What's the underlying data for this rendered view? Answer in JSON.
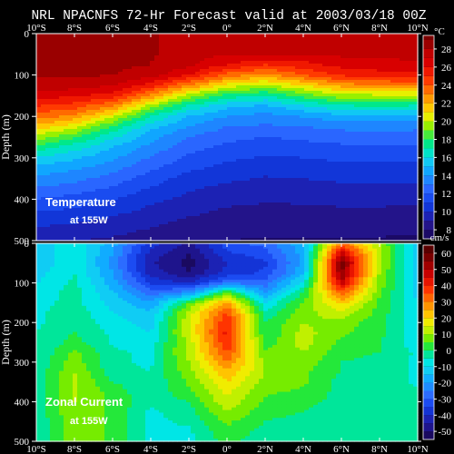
{
  "title": "NRL NPACNFS 72-Hr Forecast valid at 2003/03/18 00Z",
  "chart_data": [
    {
      "type": "heatmap",
      "title": "Temperature",
      "subtitle": "at 155W",
      "unit": "°C",
      "xlabel": "",
      "ylabel": "Depth (m)",
      "x_ticks": [
        "10°S",
        "8°S",
        "6°S",
        "4°S",
        "2°S",
        "0°",
        "2°N",
        "4°N",
        "6°N",
        "8°N",
        "10°N"
      ],
      "y_ticks": [
        "0",
        "100",
        "200",
        "300",
        "400",
        "500"
      ],
      "xlim": [
        -10,
        10
      ],
      "ylim": [
        0,
        500
      ],
      "colorbar": {
        "ticks": [
          "8",
          "10",
          "12",
          "14",
          "16",
          "18",
          "20",
          "22",
          "24",
          "26",
          "28"
        ],
        "min": 7,
        "max": 29.5,
        "step": 1,
        "colors": [
          "#1b0a66",
          "#23148a",
          "#1c22b4",
          "#1236d8",
          "#1a4cf0",
          "#2a66ff",
          "#1e86ff",
          "#10a6ff",
          "#10c8f4",
          "#00e2c8",
          "#00e88a",
          "#46ec3a",
          "#98f000",
          "#e6f000",
          "#ffc800",
          "#ff9a00",
          "#ff6a00",
          "#ff3a00",
          "#f01800",
          "#d80000",
          "#c00000",
          "#9a0000",
          "#7a0000"
        ]
      },
      "depth": [
        0,
        25,
        50,
        75,
        100,
        125,
        150,
        175,
        200,
        225,
        250,
        275,
        300,
        325,
        350,
        375,
        400,
        425,
        450,
        475,
        500
      ],
      "lat": [
        -10,
        -8,
        -6,
        -4,
        -2,
        0,
        2,
        4,
        6,
        8,
        10
      ],
      "values": [
        [
          28.6,
          28.6,
          28.4,
          28.1,
          27.6,
          27.0,
          27.1,
          27.0,
          27.3,
          27.3,
          27.5
        ],
        [
          28.6,
          28.6,
          28.4,
          28.1,
          27.6,
          27.0,
          27.1,
          27.0,
          27.3,
          27.3,
          27.5
        ],
        [
          28.5,
          28.5,
          28.4,
          28.1,
          27.5,
          27.0,
          27.0,
          27.0,
          27.2,
          27.2,
          27.4
        ],
        [
          28.4,
          28.4,
          28.3,
          28.0,
          27.3,
          26.0,
          25.0,
          25.6,
          26.4,
          26.7,
          26.7
        ],
        [
          28.1,
          28.2,
          28.0,
          27.4,
          26.0,
          23.6,
          22.6,
          24.0,
          25.2,
          25.5,
          25.6
        ],
        [
          27.5,
          27.5,
          27.0,
          25.5,
          23.0,
          20.6,
          19.8,
          21.0,
          22.5,
          23.0,
          23.0
        ],
        [
          26.4,
          26.2,
          25.5,
          22.8,
          19.5,
          17.6,
          16.9,
          18.5,
          19.6,
          19.8,
          19.8
        ],
        [
          25.0,
          24.5,
          23.0,
          19.5,
          16.8,
          15.3,
          14.8,
          15.9,
          16.9,
          17.0,
          16.9
        ],
        [
          23.6,
          22.6,
          20.3,
          17.0,
          15.0,
          14.0,
          13.6,
          14.1,
          14.6,
          14.7,
          14.6
        ],
        [
          21.6,
          20.3,
          17.8,
          15.3,
          13.9,
          13.0,
          12.8,
          13.0,
          13.3,
          13.4,
          13.3
        ],
        [
          19.6,
          18.2,
          16.2,
          14.4,
          13.0,
          12.3,
          12.0,
          12.2,
          12.4,
          12.5,
          12.4
        ],
        [
          17.6,
          16.4,
          15.0,
          13.6,
          12.4,
          11.7,
          11.4,
          11.6,
          11.8,
          11.8,
          11.8
        ],
        [
          15.9,
          15.2,
          14.2,
          12.9,
          11.8,
          11.2,
          10.9,
          11.0,
          11.2,
          11.2,
          11.2
        ],
        [
          14.7,
          14.2,
          13.4,
          12.2,
          11.2,
          10.7,
          10.4,
          10.5,
          10.7,
          10.7,
          10.7
        ],
        [
          13.8,
          13.3,
          12.6,
          11.5,
          10.6,
          10.2,
          9.9,
          10.0,
          10.2,
          10.2,
          10.2
        ],
        [
          12.9,
          12.5,
          11.8,
          10.9,
          10.1,
          9.7,
          9.5,
          9.6,
          9.7,
          9.7,
          9.7
        ],
        [
          12.0,
          11.6,
          11.0,
          10.3,
          9.7,
          9.3,
          9.1,
          9.2,
          9.3,
          9.3,
          9.2
        ],
        [
          11.2,
          10.9,
          10.4,
          9.8,
          9.3,
          8.9,
          8.8,
          8.8,
          8.9,
          8.9,
          8.8
        ],
        [
          10.4,
          10.2,
          9.8,
          9.3,
          8.9,
          8.6,
          8.5,
          8.5,
          8.5,
          8.5,
          8.4
        ],
        [
          9.8,
          9.6,
          9.3,
          8.9,
          8.6,
          8.3,
          8.2,
          8.2,
          8.2,
          8.2,
          8.1
        ],
        [
          9.2,
          9.0,
          8.8,
          8.5,
          8.2,
          8.0,
          7.9,
          7.9,
          7.9,
          7.9,
          7.8
        ]
      ]
    },
    {
      "type": "heatmap",
      "title": "Zonal Current",
      "subtitle": "at 155W",
      "unit": "cm/s",
      "xlabel": "",
      "ylabel": "Depth (m)",
      "x_ticks": [
        "10°S",
        "8°S",
        "6°S",
        "4°S",
        "2°S",
        "0°",
        "2°N",
        "4°N",
        "6°N",
        "8°N",
        "10°N"
      ],
      "y_ticks": [
        "0",
        "100",
        "200",
        "300",
        "400",
        "500"
      ],
      "xlim": [
        -10,
        10
      ],
      "ylim": [
        0,
        500
      ],
      "colorbar": {
        "ticks": [
          "-50",
          "-40",
          "-30",
          "-20",
          "-10",
          "0",
          "10",
          "20",
          "30",
          "40",
          "50",
          "60"
        ],
        "min": -55,
        "max": 65,
        "step": 5,
        "colors": [
          "#1a0a60",
          "#1e148c",
          "#1c22b4",
          "#1434d6",
          "#1c4cf2",
          "#2c6cff",
          "#1e8cff",
          "#10acff",
          "#10ccf4",
          "#00e6e6",
          "#00e69a",
          "#24e83a",
          "#76ec00",
          "#c0f000",
          "#f0ec00",
          "#ffc400",
          "#ff9400",
          "#ff6400",
          "#ff3400",
          "#e81400",
          "#c80000",
          "#a00000",
          "#7a0000",
          "#5a0000"
        ]
      },
      "depth": [
        0,
        25,
        50,
        75,
        100,
        125,
        150,
        175,
        200,
        225,
        250,
        275,
        300,
        325,
        350,
        375,
        400,
        425,
        450,
        475,
        500
      ],
      "lat": [
        -10,
        -8,
        -6,
        -4,
        -2,
        0,
        2,
        4,
        6,
        8,
        10
      ],
      "values": [
        [
          -14,
          -6,
          -18,
          -38,
          -46,
          -32,
          -28,
          -16,
          32,
          10,
          -14
        ],
        [
          -14,
          -6,
          -20,
          -42,
          -50,
          -36,
          -32,
          -18,
          48,
          12,
          -14
        ],
        [
          -14,
          -6,
          -22,
          -44,
          -52,
          -40,
          -36,
          -18,
          58,
          12,
          -14
        ],
        [
          -12,
          -5,
          -20,
          -42,
          -50,
          -38,
          -34,
          -16,
          56,
          10,
          -14
        ],
        [
          -10,
          -4,
          -18,
          -36,
          -40,
          -26,
          -28,
          -8,
          48,
          8,
          -12
        ],
        [
          -8,
          -3,
          -14,
          -28,
          -22,
          6,
          -20,
          0,
          34,
          6,
          -12
        ],
        [
          -7,
          -3,
          -12,
          -20,
          4,
          26,
          -10,
          6,
          22,
          4,
          -10
        ],
        [
          -6,
          -2,
          -10,
          -14,
          12,
          36,
          -4,
          8,
          14,
          3,
          -10
        ],
        [
          -6,
          -1,
          -8,
          -12,
          14,
          40,
          0,
          10,
          8,
          2,
          -8
        ],
        [
          -5,
          0,
          -6,
          -10,
          14,
          42,
          0,
          12,
          6,
          2,
          -8
        ],
        [
          -5,
          2,
          -6,
          -8,
          12,
          40,
          2,
          12,
          4,
          0,
          -8
        ],
        [
          -5,
          6,
          -4,
          -6,
          12,
          36,
          6,
          10,
          2,
          0,
          -6
        ],
        [
          -4,
          8,
          -4,
          -6,
          10,
          30,
          8,
          8,
          0,
          -2,
          -6
        ],
        [
          -4,
          10,
          -3,
          -5,
          8,
          24,
          10,
          6,
          0,
          -2,
          -6
        ],
        [
          -4,
          11,
          0,
          -4,
          6,
          20,
          8,
          6,
          -2,
          -2,
          -6
        ],
        [
          -4,
          11,
          3,
          -4,
          4,
          16,
          6,
          4,
          -2,
          -2,
          -4
        ],
        [
          -4,
          10,
          4,
          -4,
          0,
          14,
          4,
          2,
          -2,
          -2,
          -4
        ],
        [
          -4,
          10,
          4,
          -6,
          -2,
          10,
          2,
          0,
          -4,
          -2,
          -4
        ],
        [
          -4,
          9,
          4,
          -6,
          -4,
          6,
          0,
          -2,
          -4,
          -4,
          -4
        ],
        [
          -4,
          9,
          4,
          -6,
          -6,
          4,
          -2,
          -2,
          -4,
          -4,
          -4
        ],
        [
          -4,
          8,
          4,
          -6,
          -6,
          2,
          -4,
          -2,
          -4,
          -4,
          -4
        ]
      ]
    }
  ]
}
